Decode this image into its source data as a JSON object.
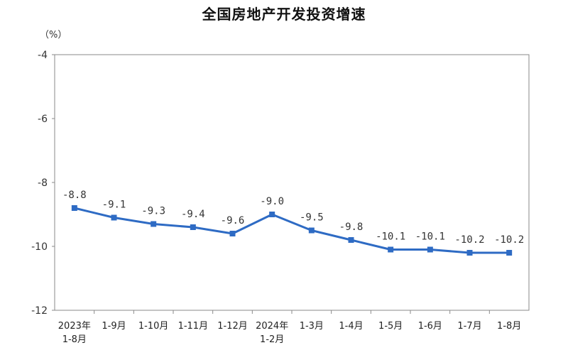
{
  "chart_data": {
    "type": "line",
    "title": "全国房地产开发投资增速",
    "unit": "（%）",
    "xlabel": "",
    "ylabel": "",
    "ylim": [
      -12,
      -4
    ],
    "yticks": [
      -4,
      -6,
      -8,
      -10,
      -12
    ],
    "grid": false,
    "legend": "none",
    "categories": [
      [
        "2023年",
        "1-8月"
      ],
      [
        "1-9月"
      ],
      [
        "1-10月"
      ],
      [
        "1-11月"
      ],
      [
        "1-12月"
      ],
      [
        "2024年",
        "1-2月"
      ],
      [
        "1-3月"
      ],
      [
        "1-4月"
      ],
      [
        "1-5月"
      ],
      [
        "1-6月"
      ],
      [
        "1-7月"
      ],
      [
        "1-8月"
      ]
    ],
    "series": [
      {
        "values": [
          -8.8,
          -9.1,
          -9.3,
          -9.4,
          -9.6,
          -9.0,
          -9.5,
          -9.8,
          -10.1,
          -10.1,
          -10.2,
          -10.2
        ],
        "labels": [
          "-8.8",
          "-9.1",
          "-9.3",
          "-9.4",
          "-9.6",
          "-9.0",
          "-9.5",
          "-9.8",
          "-10.1",
          "-10.1",
          "-10.2",
          "-10.2"
        ],
        "color": "#2e6bc4"
      }
    ]
  }
}
